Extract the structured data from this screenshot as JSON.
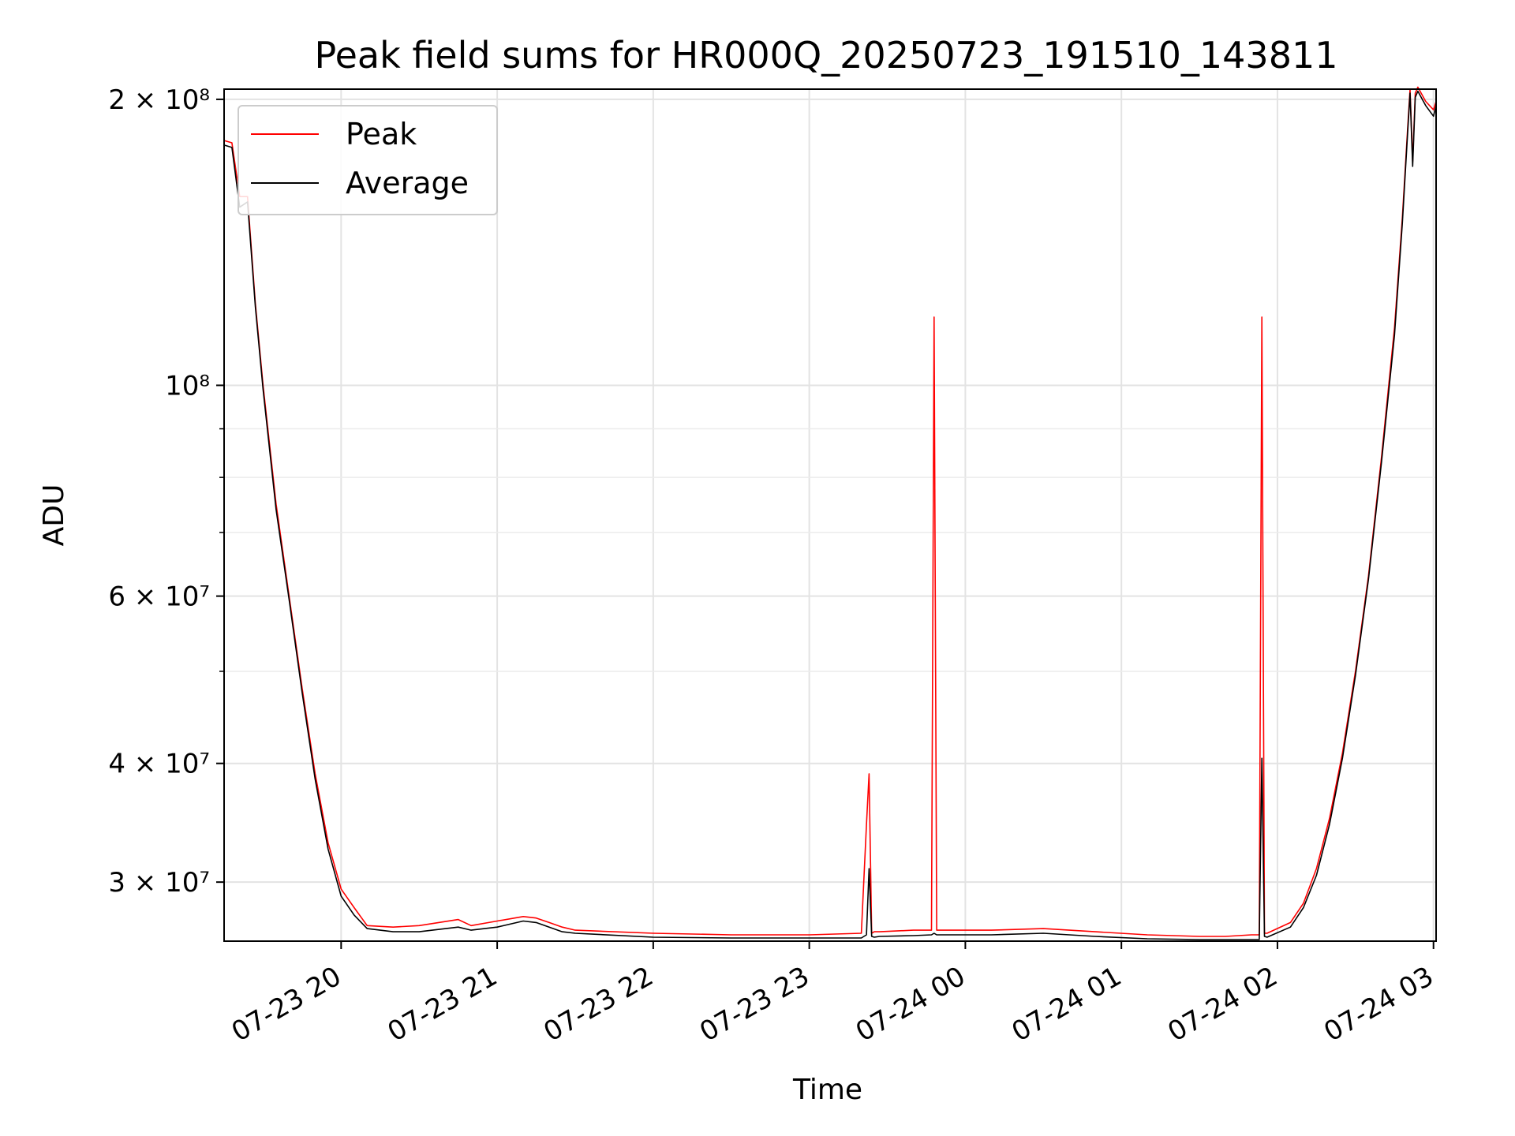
{
  "chart_data": {
    "type": "line",
    "title": "Peak field sums for HR000Q_20250723_191510_143811",
    "xlabel": "Time",
    "ylabel": "ADU",
    "yscale": "log",
    "ylim": [
      26000000,
      205000000
    ],
    "xlim": [
      "2025-07-23 19:15",
      "2025-07-24 03:01"
    ],
    "grid": true,
    "legend": "upper left",
    "x_ticks": [
      "07-23 20",
      "07-23 21",
      "07-23 22",
      "07-23 23",
      "07-24 00",
      "07-24 01",
      "07-24 02",
      "07-24 03"
    ],
    "y_major_ticks": [
      {
        "value": 30000000,
        "label": "3 × 10⁷"
      },
      {
        "value": 40000000,
        "label": "4 × 10⁷"
      },
      {
        "value": 60000000,
        "label": "6 × 10⁷"
      },
      {
        "value": 100000000,
        "label": "10⁸"
      },
      {
        "value": 200000000,
        "label": "2 × 10⁸"
      }
    ],
    "y_minor_ticks": [
      50000000,
      70000000,
      80000000,
      90000000
    ],
    "series": [
      {
        "name": "Peak",
        "color": "#ff0000",
        "x": [
          "07-23 19:15",
          "07-23 19:18",
          "07-23 19:21",
          "07-23 19:24",
          "07-23 19:27",
          "07-23 19:30",
          "07-23 19:35",
          "07-23 19:40",
          "07-23 19:45",
          "07-23 19:50",
          "07-23 19:55",
          "07-23 20:00",
          "07-23 20:05",
          "07-23 20:10",
          "07-23 20:20",
          "07-23 20:30",
          "07-23 20:45",
          "07-23 20:50",
          "07-23 21:00",
          "07-23 21:10",
          "07-23 21:15",
          "07-23 21:20",
          "07-23 21:25",
          "07-23 21:30",
          "07-23 22:00",
          "07-23 22:30",
          "07-23 23:00",
          "07-23 23:20",
          "07-23 23:22",
          "07-23 23:23",
          "07-23 23:24",
          "07-23 23:25",
          "07-23 23:27",
          "07-23 23:40",
          "07-23 23:47",
          "07-23 23:48",
          "07-23 23:49",
          "07-23 23:55",
          "07-24 00:10",
          "07-24 00:30",
          "07-24 00:50",
          "07-24 01:10",
          "07-24 01:30",
          "07-24 01:40",
          "07-24 01:50",
          "07-24 01:53",
          "07-24 01:54",
          "07-24 01:55",
          "07-24 01:56",
          "07-24 02:05",
          "07-24 02:10",
          "07-24 02:15",
          "07-24 02:20",
          "07-24 02:25",
          "07-24 02:30",
          "07-24 02:35",
          "07-24 02:40",
          "07-24 02:45",
          "07-24 02:48",
          "07-24 02:50",
          "07-24 02:51",
          "07-24 02:52",
          "07-24 02:53",
          "07-24 02:54",
          "07-24 02:57",
          "07-24 03:00",
          "07-24 03:01"
        ],
        "y": [
          181000000,
          180000000,
          158000000,
          158000000,
          122000000,
          100000000,
          75000000,
          60000000,
          48000000,
          39000000,
          33000000,
          29500000,
          28200000,
          27000000,
          26900000,
          27000000,
          27400000,
          27000000,
          27300000,
          27600000,
          27500000,
          27200000,
          26900000,
          26700000,
          26500000,
          26400000,
          26400000,
          26500000,
          34500000,
          39000000,
          26500000,
          26600000,
          26600000,
          26700000,
          26700000,
          118000000,
          26700000,
          26700000,
          26700000,
          26800000,
          26600000,
          26400000,
          26300000,
          26300000,
          26400000,
          26400000,
          118000000,
          26500000,
          26500000,
          27200000,
          28500000,
          31000000,
          35000000,
          41000000,
          50000000,
          63000000,
          84000000,
          115000000,
          150000000,
          185000000,
          205000000,
          172000000,
          203000000,
          206000000,
          199000000,
          195000000,
          199000000
        ]
      },
      {
        "name": "Average",
        "color": "#000000",
        "x": [
          "07-23 19:15",
          "07-23 19:18",
          "07-23 19:21",
          "07-23 19:24",
          "07-23 19:27",
          "07-23 19:30",
          "07-23 19:35",
          "07-23 19:40",
          "07-23 19:45",
          "07-23 19:50",
          "07-23 19:55",
          "07-23 20:00",
          "07-23 20:05",
          "07-23 20:10",
          "07-23 20:20",
          "07-23 20:30",
          "07-23 20:45",
          "07-23 20:50",
          "07-23 21:00",
          "07-23 21:10",
          "07-23 21:15",
          "07-23 21:20",
          "07-23 21:25",
          "07-23 21:30",
          "07-23 22:00",
          "07-23 22:30",
          "07-23 23:00",
          "07-23 23:20",
          "07-23 23:22",
          "07-23 23:23",
          "07-23 23:24",
          "07-23 23:25",
          "07-23 23:27",
          "07-23 23:40",
          "07-23 23:47",
          "07-23 23:48",
          "07-23 23:49",
          "07-23 23:55",
          "07-24 00:10",
          "07-24 00:30",
          "07-24 00:50",
          "07-24 01:10",
          "07-24 01:30",
          "07-24 01:40",
          "07-24 01:50",
          "07-24 01:53",
          "07-24 01:54",
          "07-24 01:55",
          "07-24 01:56",
          "07-24 02:05",
          "07-24 02:10",
          "07-24 02:15",
          "07-24 02:20",
          "07-24 02:25",
          "07-24 02:30",
          "07-24 02:35",
          "07-24 02:40",
          "07-24 02:45",
          "07-24 02:48",
          "07-24 02:50",
          "07-24 02:51",
          "07-24 02:52",
          "07-24 02:53",
          "07-24 02:54",
          "07-24 02:57",
          "07-24 03:00",
          "07-24 03:01"
        ],
        "y": [
          179000000,
          178000000,
          154000000,
          156000000,
          121000000,
          99000000,
          74000000,
          59500000,
          47500000,
          38500000,
          32500000,
          29000000,
          27700000,
          26800000,
          26600000,
          26600000,
          26900000,
          26700000,
          26900000,
          27300000,
          27200000,
          26900000,
          26600000,
          26500000,
          26250000,
          26200000,
          26200000,
          26200000,
          26400000,
          31000000,
          26300000,
          26250000,
          26300000,
          26350000,
          26400000,
          26500000,
          26400000,
          26400000,
          26400000,
          26500000,
          26300000,
          26150000,
          26100000,
          26100000,
          26100000,
          26100000,
          40500000,
          26300000,
          26250000,
          26900000,
          28200000,
          30500000,
          34500000,
          40500000,
          49500000,
          62500000,
          83000000,
          113000000,
          148000000,
          183000000,
          203000000,
          170000000,
          201000000,
          204000000,
          197000000,
          192000000,
          197000000
        ]
      }
    ]
  }
}
